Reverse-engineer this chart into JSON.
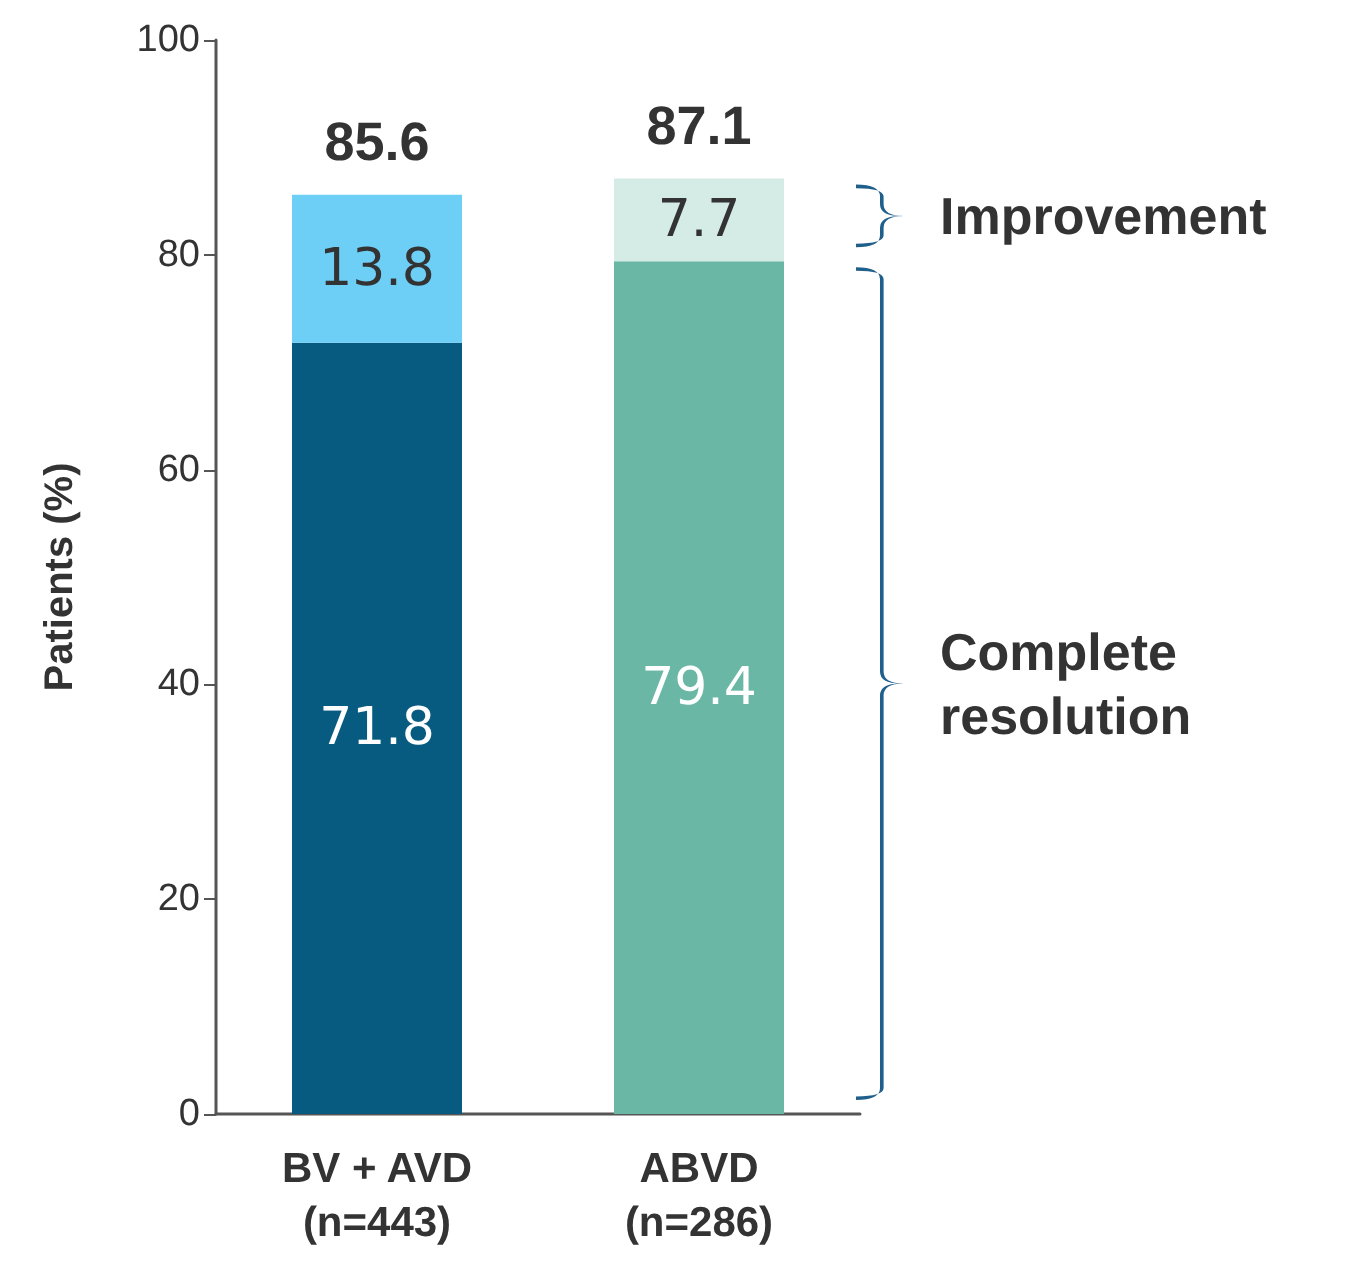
{
  "chart_data": {
    "type": "bar",
    "stacked": true,
    "data_labels": true,
    "ylabel": "Patients (%)",
    "categories": [
      "BV + AVD\n(n=443)",
      "ABVD\n(n=286)"
    ],
    "series": [
      {
        "name": "Complete resolution",
        "colors": [
          "#075a80",
          "#6ab7a5"
        ],
        "values": [
          71.8,
          79.4
        ]
      },
      {
        "name": "Improvement",
        "colors": [
          "#6dcff6",
          "#d5ebe5"
        ],
        "values": [
          13.8,
          7.7
        ]
      }
    ],
    "totals": [
      "85.6",
      "87.1"
    ],
    "ylim": [
      0,
      100
    ],
    "yticks": [
      0,
      20,
      40,
      60,
      80,
      100
    ],
    "grid": false
  }
}
